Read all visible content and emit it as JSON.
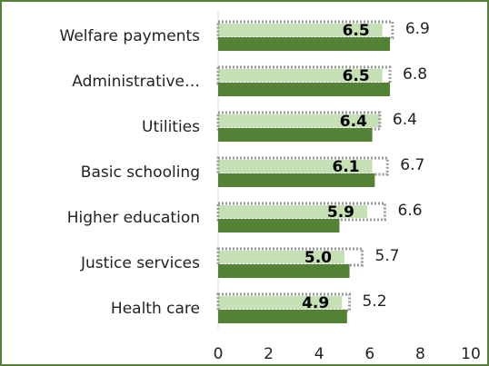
{
  "chart_data": {
    "type": "bar",
    "orientation": "horizontal",
    "categories": [
      "Welfare payments",
      "Administrative…",
      "Utilities",
      "Basic schooling",
      "Higher education",
      "Justice services",
      "Health care"
    ],
    "series": [
      {
        "color": "#c5e0b4",
        "values": [
          6.5,
          6.5,
          6.4,
          6.1,
          5.9,
          5.0,
          4.9
        ],
        "value_labels": [
          "6.5",
          "6.5",
          "6.4",
          "6.1",
          "5.9",
          "5.0",
          "4.9"
        ]
      },
      {
        "color": "#999999",
        "style": "dotted-outline",
        "values": [
          6.9,
          6.8,
          6.4,
          6.7,
          6.6,
          5.7,
          5.2
        ]
      },
      {
        "color": "#548235",
        "values": [
          6.8,
          6.8,
          6.1,
          6.2,
          4.8,
          5.2,
          5.1
        ]
      }
    ],
    "xlim": [
      0,
      10
    ],
    "xticks": [
      0,
      2,
      4,
      6,
      8,
      10
    ]
  }
}
